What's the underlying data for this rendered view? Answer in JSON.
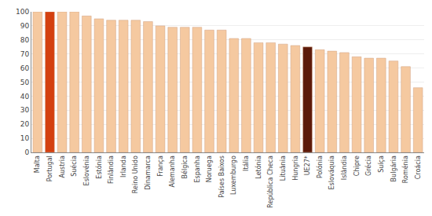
{
  "chart_data": {
    "type": "bar",
    "categories": [
      "Malta",
      "Portugal",
      "Austria",
      "Suécia",
      "Eslovénia",
      "Estónia",
      "Finlândia",
      "Irlanda",
      "Reino Unido",
      "Dinamarca",
      "França",
      "Alemanha",
      "Bélgica",
      "Espanha",
      "Noruega",
      "Países Baixos",
      "Luxemburgo",
      "Itália",
      "Letónia",
      "República Checa",
      "Lituânia",
      "Hungria",
      "UE27*",
      "Polónia",
      "Eslováquia",
      "Islândia",
      "Chipre",
      "Grécia",
      "Suíça",
      "Bulgária",
      "Roménia",
      "Croácia"
    ],
    "values": [
      100,
      100,
      100,
      100,
      97,
      95,
      94,
      94,
      94,
      93,
      90,
      89,
      89,
      89,
      87,
      87,
      81,
      81,
      78,
      78,
      77,
      76,
      75,
      73,
      72,
      71,
      68,
      67,
      67,
      65,
      61,
      46
    ],
    "colors": [
      "#F5C9A0",
      "#D44010",
      "#F5C9A0",
      "#F5C9A0",
      "#F5C9A0",
      "#F5C9A0",
      "#F5C9A0",
      "#F5C9A0",
      "#F5C9A0",
      "#F5C9A0",
      "#F5C9A0",
      "#F5C9A0",
      "#F5C9A0",
      "#F5C9A0",
      "#F5C9A0",
      "#F5C9A0",
      "#F5C9A0",
      "#F5C9A0",
      "#F5C9A0",
      "#F5C9A0",
      "#F5C9A0",
      "#F5C9A0",
      "#5C1A0A",
      "#F5C9A0",
      "#F5C9A0",
      "#F5C9A0",
      "#F5C9A0",
      "#F5C9A0",
      "#F5C9A0",
      "#F5C9A0",
      "#F5C9A0",
      "#F5C9A0"
    ],
    "ylim": [
      0,
      100
    ],
    "yticks": [
      0,
      10,
      20,
      30,
      40,
      50,
      60,
      70,
      80,
      90,
      100
    ],
    "grid": true
  }
}
